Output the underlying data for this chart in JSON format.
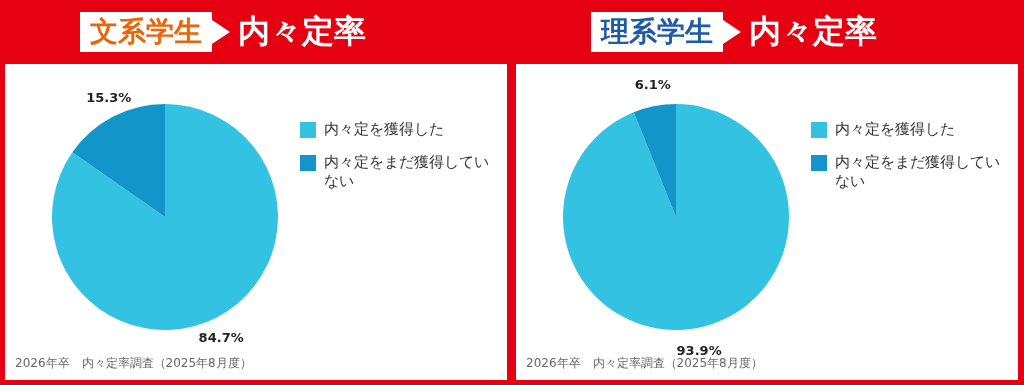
{
  "chart_data": [
    {
      "type": "pie",
      "title": "文系学生",
      "subtitle": "内々定率",
      "categories": [
        "内々定を獲得した",
        "内々定をまだ獲得していない"
      ],
      "values": [
        84.7,
        15.3
      ],
      "colors": [
        "#33c2e2",
        "#1295c9"
      ],
      "value_labels": [
        "84.7%",
        "15.3%"
      ],
      "legend": "right",
      "annotations": [
        "2026年卒　内々定率調査（2025年8月度）"
      ]
    },
    {
      "type": "pie",
      "title": "理系学生",
      "subtitle": "内々定率",
      "categories": [
        "内々定を獲得した",
        "内々定をまだ獲得していない"
      ],
      "values": [
        93.9,
        6.1
      ],
      "colors": [
        "#33c2e2",
        "#1295c9"
      ],
      "value_labels": [
        "93.9%",
        "6.1%"
      ],
      "legend": "right",
      "annotations": [
        "2026年卒　内々定率調査（2025年8月度）"
      ]
    }
  ]
}
